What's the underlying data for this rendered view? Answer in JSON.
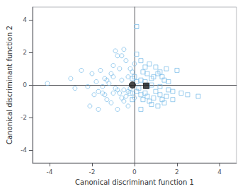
{
  "chart_data": {
    "type": "scatter",
    "xlabel": "Canonical discriminant function 1",
    "ylabel": "Canonical discriminant function 2",
    "xlim": [
      -4.8,
      4.8
    ],
    "ylim": [
      -4.8,
      4.8
    ],
    "xticks": [
      -4,
      -2,
      0,
      2,
      4
    ],
    "yticks": [
      -4,
      -2,
      0,
      2,
      4
    ],
    "grid": false,
    "series": [
      {
        "marker": "circle_open",
        "color": "#74b9e8",
        "x": [
          -4.1,
          -3.0,
          -2.8,
          -2.5,
          -2.2,
          -2.1,
          -2.0,
          -1.9,
          -1.8,
          -1.7,
          -1.5,
          -1.4,
          -1.3,
          -1.2,
          -1.1,
          -1.0,
          -0.9,
          -0.8,
          -0.7,
          -0.6,
          -0.5,
          -0.5,
          -0.4,
          -0.3,
          -0.2,
          -0.1,
          0.0,
          -0.3,
          -0.5,
          -0.8,
          -1.0,
          -1.5,
          -1.3,
          -0.9,
          -0.6,
          -0.1,
          0.0,
          -0.2,
          -0.3,
          -0.7,
          -1.1,
          -1.4,
          -0.8,
          -0.6,
          -1.0,
          -0.4,
          -1.6,
          -1.7
        ],
        "values": [
          0.1,
          0.4,
          -0.2,
          0.9,
          -0.1,
          -1.3,
          0.7,
          -0.6,
          0.2,
          -1.5,
          -0.5,
          0.4,
          -0.9,
          0.1,
          -1.1,
          0.5,
          2.1,
          1.8,
          -0.5,
          1.8,
          2.2,
          -0.3,
          1.5,
          -0.4,
          1.0,
          0.8,
          1.3,
          -1.3,
          -1.0,
          -1.5,
          -0.5,
          -0.1,
          0.3,
          -0.2,
          -0.8,
          -0.5,
          -0.8,
          -0.2,
          0.5,
          1.0,
          0.7,
          -0.6,
          -0.3,
          0.3,
          1.2,
          -0.7,
          0.9,
          -0.4
        ]
      },
      {
        "marker": "square_open",
        "color": "#74b9e8",
        "x": [
          0.1,
          0.1,
          0.3,
          0.4,
          0.5,
          0.6,
          0.7,
          0.8,
          0.9,
          1.0,
          1.1,
          1.2,
          1.3,
          1.4,
          1.5,
          1.6,
          1.8,
          2.0,
          2.2,
          2.5,
          3.0,
          0.1,
          0.3,
          0.4,
          0.5,
          0.6,
          0.7,
          0.8,
          0.9,
          1.0,
          1.1,
          1.2,
          1.3,
          1.4,
          1.5,
          1.6,
          1.8,
          0.2,
          0.3,
          0.5,
          0.6,
          -0.1,
          -0.2,
          0.0,
          0.1,
          -0.1,
          0.3,
          0.8,
          1.2
        ],
        "values": [
          3.6,
          1.9,
          1.5,
          0.8,
          1.1,
          0.7,
          1.3,
          0.4,
          0.5,
          1.1,
          0.7,
          0.8,
          0.5,
          0.3,
          1.0,
          0.2,
          -0.4,
          0.9,
          -0.5,
          -0.6,
          -0.7,
          -0.4,
          -0.6,
          -0.9,
          -0.5,
          -0.7,
          -1.0,
          -1.2,
          -0.8,
          -0.4,
          -1.3,
          -0.6,
          -0.9,
          -1.1,
          -0.7,
          -0.3,
          -0.9,
          -0.2,
          0.3,
          0.2,
          -0.1,
          -0.9,
          -0.5,
          0.5,
          0.2,
          0.4,
          -1.5,
          0.0,
          -0.1
        ]
      },
      {
        "marker": "circle",
        "color": "#1a1a1a",
        "x": [
          -0.1
        ],
        "values": [
          0.0
        ]
      },
      {
        "marker": "square",
        "color": "#1a1a1a",
        "x": [
          0.55
        ],
        "values": [
          -0.05
        ]
      }
    ]
  }
}
